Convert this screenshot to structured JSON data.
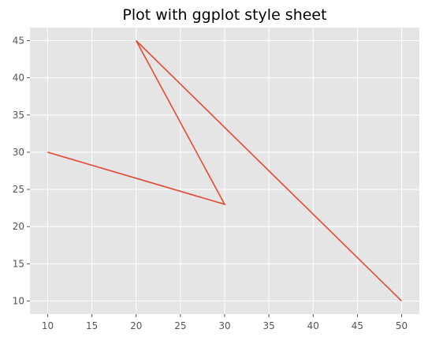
{
  "chart_data": {
    "type": "line",
    "title": "Plot with ggplot style sheet",
    "xlabel": "",
    "ylabel": "",
    "x": [
      10,
      30,
      20,
      50
    ],
    "y": [
      30,
      23,
      45,
      10
    ],
    "xlim": [
      8,
      52
    ],
    "ylim": [
      8.25,
      46.75
    ],
    "xticks": [
      10,
      15,
      20,
      25,
      30,
      35,
      40,
      45,
      50
    ],
    "yticks": [
      10,
      15,
      20,
      25,
      30,
      35,
      40,
      45
    ],
    "grid": true,
    "colors": {
      "background": "#e5e5e5",
      "grid": "#ffffff",
      "line": "#e24a33"
    }
  }
}
